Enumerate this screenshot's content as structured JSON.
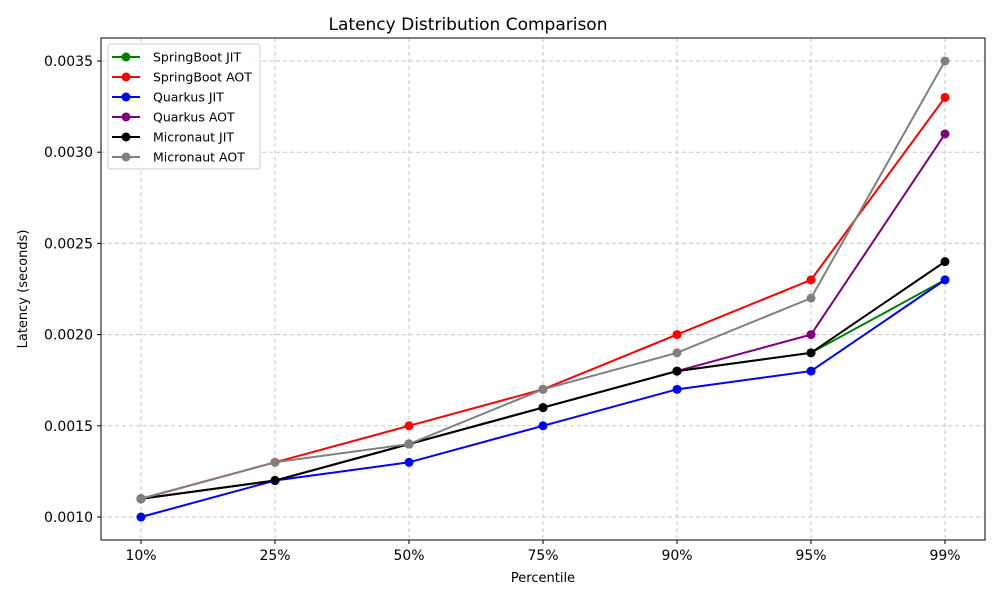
{
  "chart_data": {
    "type": "line",
    "title": "Latency Distribution Comparison",
    "xlabel": "Percentile",
    "ylabel": "Latency (seconds)",
    "categories": [
      "10%",
      "25%",
      "50%",
      "75%",
      "90%",
      "95%",
      "99%"
    ],
    "ylim": [
      0.000874,
      0.003626
    ],
    "yticks": [
      0.001,
      0.0015,
      0.002,
      0.0025,
      0.003,
      0.0035
    ],
    "ytick_labels": [
      "0.0010",
      "0.0015",
      "0.0020",
      "0.0025",
      "0.0030",
      "0.0035"
    ],
    "grid": true,
    "legend_position": "top-left",
    "series": [
      {
        "name": "SpringBoot JIT",
        "color": "#008000",
        "values": [
          0.0011,
          0.0012,
          0.0014,
          0.0016,
          0.0018,
          0.0019,
          0.0023
        ]
      },
      {
        "name": "SpringBoot AOT",
        "color": "#ff0000",
        "values": [
          0.0011,
          0.0013,
          0.0015,
          0.0017,
          0.002,
          0.0023,
          0.0033
        ]
      },
      {
        "name": "Quarkus JIT",
        "color": "#0000ff",
        "values": [
          0.001,
          0.0012,
          0.0013,
          0.0015,
          0.0017,
          0.0018,
          0.0023
        ]
      },
      {
        "name": "Quarkus AOT",
        "color": "#800080",
        "values": [
          0.0011,
          0.0012,
          0.0014,
          0.0016,
          0.0018,
          0.002,
          0.0031
        ]
      },
      {
        "name": "Micronaut JIT",
        "color": "#000000",
        "values": [
          0.0011,
          0.0012,
          0.0014,
          0.0016,
          0.0018,
          0.0019,
          0.0024
        ]
      },
      {
        "name": "Micronaut AOT",
        "color": "#808080",
        "values": [
          0.0011,
          0.0013,
          0.0014,
          0.0017,
          0.0019,
          0.0022,
          0.0035
        ]
      }
    ]
  }
}
